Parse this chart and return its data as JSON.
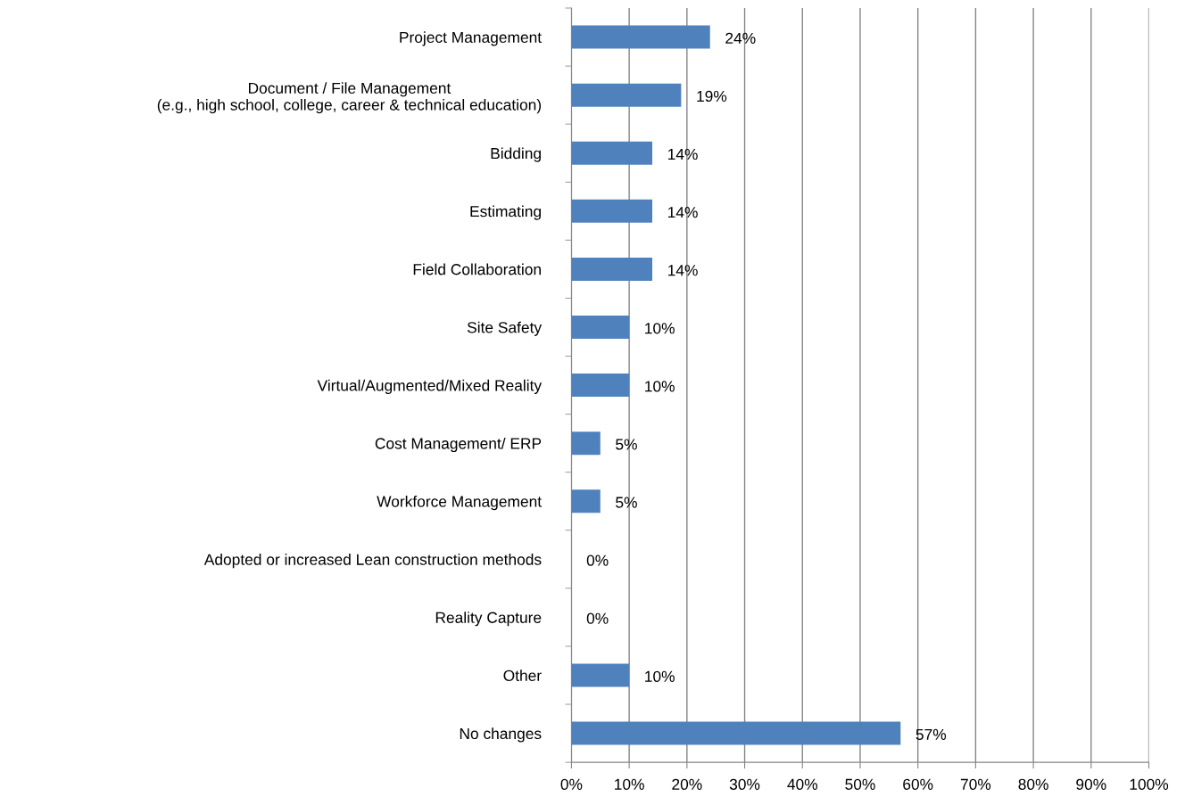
{
  "chart_data": {
    "type": "bar",
    "orientation": "horizontal",
    "categories": [
      "Project Management",
      "Document / File Management\n(e.g., high school, college, career & technical education)",
      "Bidding",
      "Estimating",
      "Field Collaboration",
      "Site Safety",
      "Virtual/Augmented/Mixed Reality",
      "Cost Management/ ERP",
      "Workforce Management",
      "Adopted or increased Lean construction methods",
      "Reality Capture",
      "Other",
      "No changes"
    ],
    "values": [
      24,
      19,
      14,
      14,
      14,
      10,
      10,
      5,
      5,
      0,
      0,
      10,
      57
    ],
    "value_labels": [
      "24%",
      "19%",
      "14%",
      "14%",
      "14%",
      "10%",
      "10%",
      "5%",
      "5%",
      "0%",
      "0%",
      "10%",
      "57%"
    ],
    "color": "#4f81bd",
    "xlim": [
      0,
      100
    ],
    "xticks": [
      {
        "value": 0,
        "label": "0%"
      },
      {
        "value": 10,
        "label": "10%"
      },
      {
        "value": 20,
        "label": "20%"
      },
      {
        "value": 30,
        "label": "30%"
      },
      {
        "value": 40,
        "label": "40%"
      },
      {
        "value": 50,
        "label": "50%"
      },
      {
        "value": 60,
        "label": "60%"
      },
      {
        "value": 70,
        "label": "70%"
      },
      {
        "value": 80,
        "label": "80%"
      },
      {
        "value": 90,
        "label": "90%"
      },
      {
        "value": 100,
        "label": "100%"
      }
    ],
    "grid": "x",
    "legend": false
  }
}
